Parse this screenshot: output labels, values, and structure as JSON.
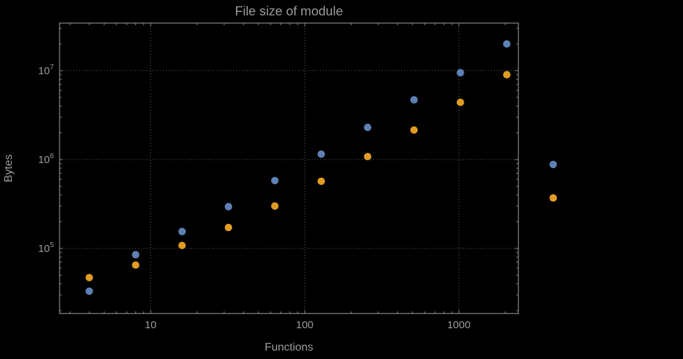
{
  "page": {
    "background": "#000000"
  },
  "chart_style": {
    "frame_color": "#8a8a8a",
    "grid_color": "#6e6e6e",
    "text_color": "#9c9c9c",
    "grid_style": "dotted",
    "marker_radius": 5.3
  },
  "chart_data": {
    "type": "scatter",
    "title": "File size of module",
    "xlabel": "Functions",
    "ylabel": "Bytes",
    "xscale": "log",
    "yscale": "log",
    "grid": "dotted",
    "legend": "none",
    "xrange_approx": [
      2.6,
      2430
    ],
    "yrange_approx": [
      18500,
      34000000
    ],
    "x": [
      4,
      8,
      16,
      32,
      64,
      128,
      256,
      512,
      1024,
      2048,
      4096
    ],
    "series": [
      {
        "name": "blue",
        "color": "#5e81b5",
        "values": [
          33000,
          85000,
          155000,
          295000,
          580000,
          1150000,
          2300000,
          4700000,
          9500000,
          20000000,
          880000
        ]
      },
      {
        "name": "orange",
        "color": "#e19c24",
        "values": [
          47000,
          65000,
          108000,
          172000,
          300000,
          570000,
          1080000,
          2150000,
          4400000,
          9000000,
          370000
        ]
      }
    ],
    "xticks": {
      "values": [
        10,
        100,
        1000
      ],
      "labels": [
        "10",
        "100",
        "1000"
      ]
    },
    "yticks": {
      "values": [
        100000,
        1000000,
        10000000
      ],
      "labels": [
        "10^5",
        "10^6",
        "10^7"
      ]
    }
  }
}
